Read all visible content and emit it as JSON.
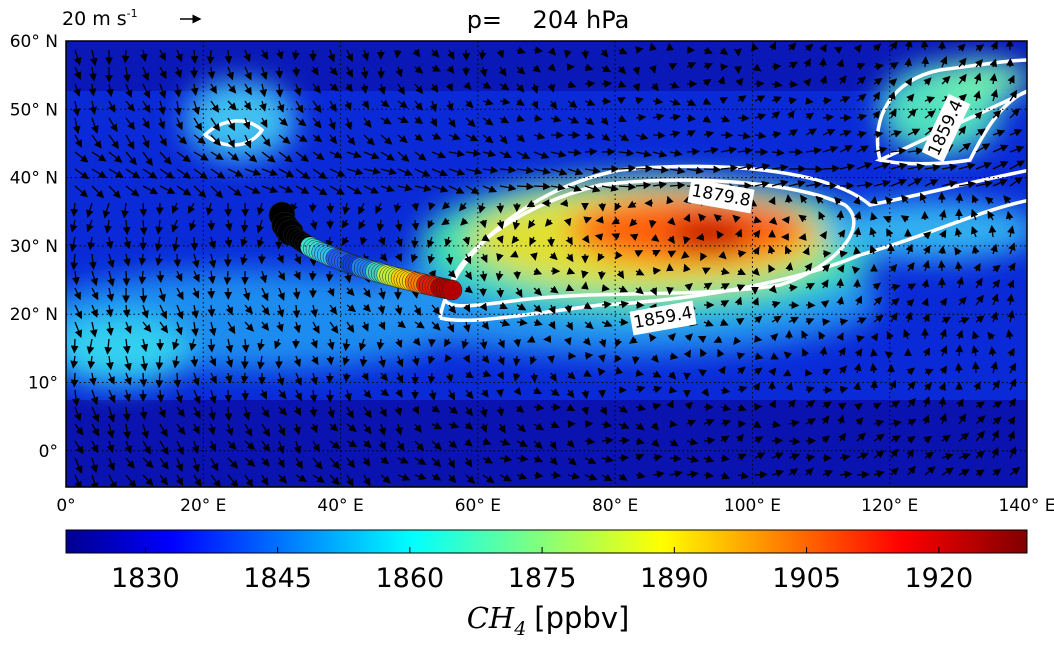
{
  "title": "p=    204 hPa",
  "vector_key": {
    "label": "20 m s",
    "superscript": "-1"
  },
  "map": {
    "lonlim": [
      0,
      140
    ],
    "latlim": [
      -5.3,
      60
    ],
    "lon_ticks": [
      {
        "value": 0,
        "label": "0°"
      },
      {
        "value": 20,
        "label": "20° E"
      },
      {
        "value": 40,
        "label": "40° E"
      },
      {
        "value": 60,
        "label": "60° E"
      },
      {
        "value": 80,
        "label": "80° E"
      },
      {
        "value": 100,
        "label": "100° E"
      },
      {
        "value": 120,
        "label": "120° E"
      },
      {
        "value": 140,
        "label": "140° E"
      }
    ],
    "lat_ticks": [
      {
        "value": 60,
        "label": "60° N"
      },
      {
        "value": 50,
        "label": "50° N"
      },
      {
        "value": 40,
        "label": "40° N"
      },
      {
        "value": 30,
        "label": "30° N"
      },
      {
        "value": 20,
        "label": "20° N"
      },
      {
        "value": 10,
        "label": "10°"
      },
      {
        "value": 0,
        "label": "0°"
      }
    ]
  },
  "contour_labels": [
    "1879.8",
    "1859.4",
    "1859.4"
  ],
  "colorbar": {
    "clim": [
      1821,
      1930
    ],
    "ticks": [
      1830,
      1845,
      1860,
      1875,
      1890,
      1905,
      1920
    ],
    "label_var": "CH",
    "label_sub": "4",
    "label_unit": "[ppbv]"
  }
}
